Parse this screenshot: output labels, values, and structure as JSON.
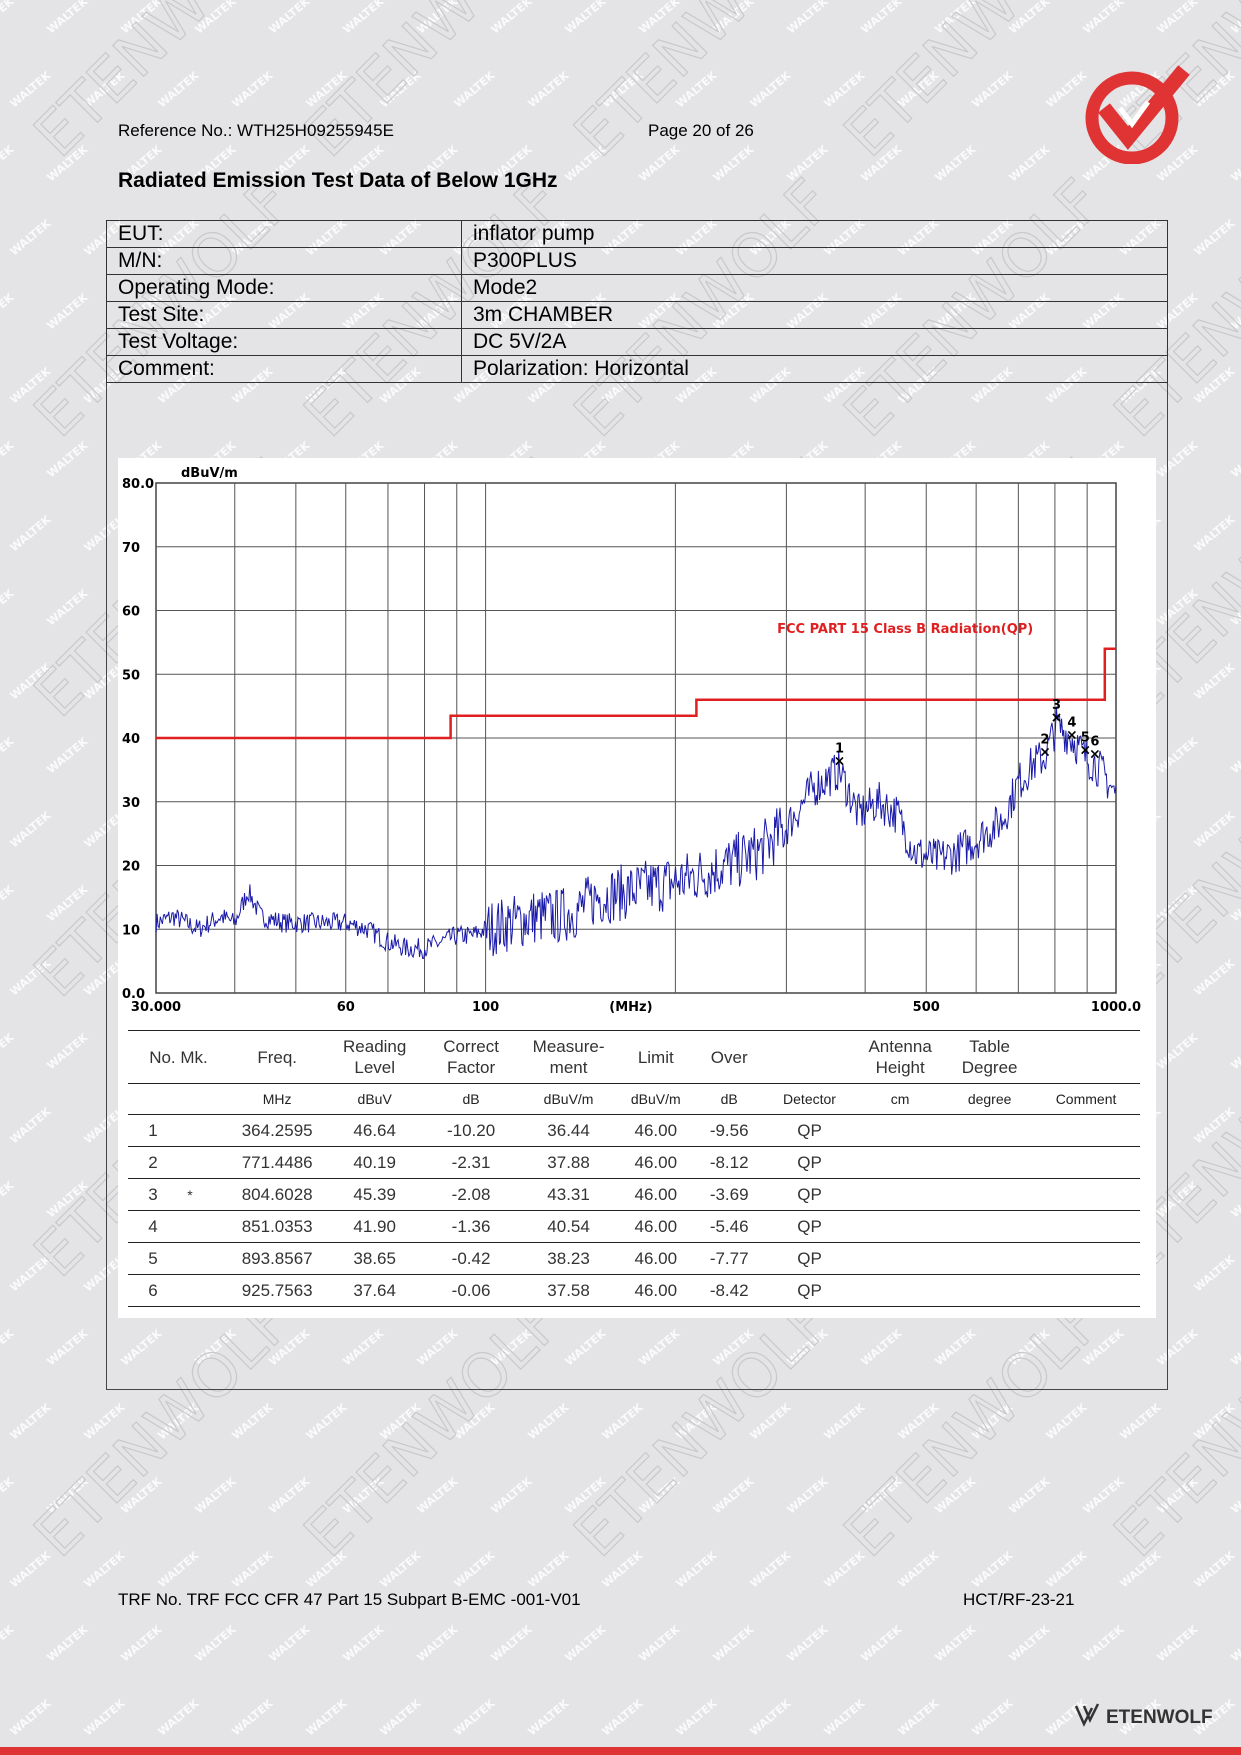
{
  "header": {
    "reference": "Reference No.: WTH25H09255945E",
    "page": "Page 20 of 26"
  },
  "section_title": "Radiated Emission Test Data of Below 1GHz",
  "info": [
    {
      "label": "EUT:",
      "value": "inflator pump"
    },
    {
      "label": "M/N:",
      "value": "P300PLUS"
    },
    {
      "label": "Operating Mode:",
      "value": "Mode2"
    },
    {
      "label": "Test Site:",
      "value": "3m CHAMBER"
    },
    {
      "label": "Test Voltage:",
      "value": "DC 5V/2A"
    },
    {
      "label": "Comment:",
      "value": "Polarization: Horizontal"
    }
  ],
  "chart_data": {
    "type": "line",
    "ylabel": "dBuV/m",
    "xlabel": "(MHz)",
    "x_scale": "log",
    "xlim": [
      30,
      1000
    ],
    "ylim": [
      0,
      80
    ],
    "y_ticks": [
      "0.0",
      "10",
      "20",
      "30",
      "40",
      "50",
      "60",
      "70",
      "80.0"
    ],
    "x_ticks": [
      {
        "value": 30,
        "label": "30.000"
      },
      {
        "value": 60,
        "label": "60"
      },
      {
        "value": 100,
        "label": "100"
      },
      {
        "value": 500,
        "label": "500"
      },
      {
        "value": 1000,
        "label": "1000.0"
      }
    ],
    "grid": true,
    "limit_label": "FCC PART 15 Class B Radiation(QP)",
    "limit_color": "#e02020",
    "trace_color": "#1a1aaa",
    "limit": [
      {
        "x": 30,
        "y": 40.0
      },
      {
        "x": 88,
        "y": 40.0
      },
      {
        "x": 88,
        "y": 43.5
      },
      {
        "x": 216,
        "y": 43.5
      },
      {
        "x": 216,
        "y": 46.0
      },
      {
        "x": 960,
        "y": 46.0
      },
      {
        "x": 960,
        "y": 54.0
      },
      {
        "x": 1000,
        "y": 54.0
      }
    ],
    "trace_anchors": [
      [
        30,
        11
      ],
      [
        32,
        12
      ],
      [
        35,
        10
      ],
      [
        38,
        12
      ],
      [
        40,
        11
      ],
      [
        42,
        16
      ],
      [
        44,
        12
      ],
      [
        48,
        11
      ],
      [
        52,
        11
      ],
      [
        56,
        11
      ],
      [
        60,
        11
      ],
      [
        65,
        10
      ],
      [
        70,
        8
      ],
      [
        75,
        7
      ],
      [
        80,
        7
      ],
      [
        85,
        8
      ],
      [
        90,
        9
      ],
      [
        95,
        9
      ],
      [
        100,
        10
      ],
      [
        110,
        11
      ],
      [
        120,
        12
      ],
      [
        130,
        12
      ],
      [
        140,
        13
      ],
      [
        150,
        15
      ],
      [
        170,
        16
      ],
      [
        190,
        17
      ],
      [
        210,
        18
      ],
      [
        240,
        20
      ],
      [
        270,
        22
      ],
      [
        300,
        26
      ],
      [
        330,
        32
      ],
      [
        364,
        35
      ],
      [
        390,
        28
      ],
      [
        420,
        30
      ],
      [
        450,
        28
      ],
      [
        480,
        22
      ],
      [
        520,
        21
      ],
      [
        560,
        22
      ],
      [
        600,
        24
      ],
      [
        660,
        27
      ],
      [
        700,
        33
      ],
      [
        740,
        36
      ],
      [
        771,
        37
      ],
      [
        804,
        42
      ],
      [
        851,
        40
      ],
      [
        894,
        37
      ],
      [
        926,
        36
      ],
      [
        960,
        34
      ],
      [
        1000,
        31
      ]
    ],
    "markers": [
      {
        "n": "1",
        "x": 364.2595,
        "y": 36.44
      },
      {
        "n": "2",
        "x": 771.4486,
        "y": 37.88
      },
      {
        "n": "3",
        "x": 804.6028,
        "y": 43.31
      },
      {
        "n": "4",
        "x": 851.0353,
        "y": 40.54
      },
      {
        "n": "5",
        "x": 893.8567,
        "y": 38.23
      },
      {
        "n": "6",
        "x": 925.7563,
        "y": 37.58
      }
    ]
  },
  "results": {
    "headers": [
      {
        "name": "col-no",
        "l1": "",
        "l2": "No. Mk."
      },
      {
        "name": "col-freq",
        "l1": "",
        "l2": "Freq."
      },
      {
        "name": "col-reading",
        "l1": "Reading",
        "l2": "Level"
      },
      {
        "name": "col-correct",
        "l1": "Correct",
        "l2": "Factor"
      },
      {
        "name": "col-measure",
        "l1": "Measure-",
        "l2": "ment"
      },
      {
        "name": "col-limit",
        "l1": "",
        "l2": "Limit"
      },
      {
        "name": "col-over",
        "l1": "",
        "l2": "Over"
      },
      {
        "name": "col-detector",
        "l1": "",
        "l2": ""
      },
      {
        "name": "col-antenna",
        "l1": "Antenna",
        "l2": "Height"
      },
      {
        "name": "col-table",
        "l1": "Table",
        "l2": "Degree"
      },
      {
        "name": "col-comment",
        "l1": "",
        "l2": ""
      }
    ],
    "units": [
      "",
      "MHz",
      "dBuV",
      "dB",
      "dBuV/m",
      "dBuV/m",
      "dB",
      "Detector",
      "cm",
      "degree",
      "Comment"
    ],
    "rows": [
      {
        "no": "1",
        "mk": "",
        "freq": "364.2595",
        "reading": "46.64",
        "correct": "-10.20",
        "measure": "36.44",
        "limit": "46.00",
        "over": "-9.56",
        "detector": "QP"
      },
      {
        "no": "2",
        "mk": "",
        "freq": "771.4486",
        "reading": "40.19",
        "correct": "-2.31",
        "measure": "37.88",
        "limit": "46.00",
        "over": "-8.12",
        "detector": "QP"
      },
      {
        "no": "3",
        "mk": "*",
        "freq": "804.6028",
        "reading": "45.39",
        "correct": "-2.08",
        "measure": "43.31",
        "limit": "46.00",
        "over": "-3.69",
        "detector": "QP"
      },
      {
        "no": "4",
        "mk": "",
        "freq": "851.0353",
        "reading": "41.90",
        "correct": "-1.36",
        "measure": "40.54",
        "limit": "46.00",
        "over": "-5.46",
        "detector": "QP"
      },
      {
        "no": "5",
        "mk": "",
        "freq": "893.8567",
        "reading": "38.65",
        "correct": "-0.42",
        "measure": "38.23",
        "limit": "46.00",
        "over": "-7.77",
        "detector": "QP"
      },
      {
        "no": "6",
        "mk": "",
        "freq": "925.7563",
        "reading": "37.64",
        "correct": "-0.06",
        "measure": "37.58",
        "limit": "46.00",
        "over": "-8.42",
        "detector": "QP"
      }
    ]
  },
  "footer": {
    "trf": "TRF No. TRF FCC CFR 47 Part 15 Subpart B-EMC -001-V01",
    "code": "HCT/RF-23-21"
  },
  "logo": {
    "brand_text": "ETENWOLF",
    "watermark_small": "WALTEK",
    "watermark_large": "ETENWOLF"
  },
  "colors": {
    "accent": "#e03334",
    "page_bg": "#e4e4e6"
  }
}
